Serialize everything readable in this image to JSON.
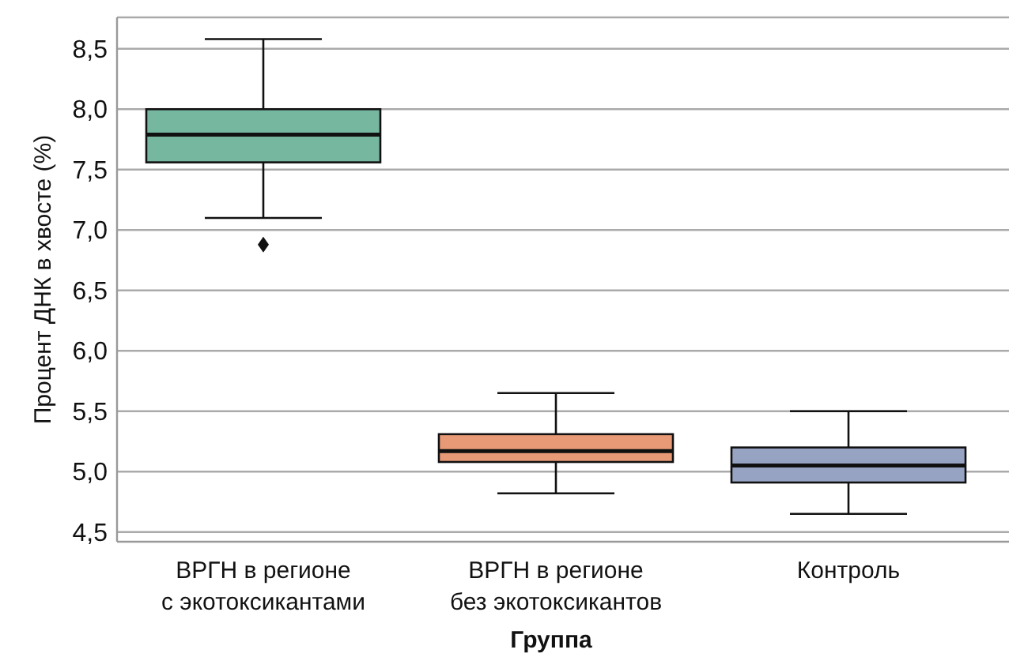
{
  "chart_data": {
    "type": "box",
    "xlabel": "Группа",
    "ylabel": "Процент ДНК в хвосте (%)",
    "categories": [
      "ВРГН в регионе\nс экотоксикантами",
      "ВРГН в регионе\nбез экотоксикантов",
      "Контроль"
    ],
    "colors": [
      "#76b7a0",
      "#e89a76",
      "#96a3c2"
    ],
    "boxes": [
      {
        "low": 7.1,
        "q1": 7.56,
        "median": 7.79,
        "q3": 8.0,
        "high": 8.58,
        "outliers": [
          6.88
        ]
      },
      {
        "low": 4.82,
        "q1": 5.08,
        "median": 5.17,
        "q3": 5.31,
        "high": 5.65
      },
      {
        "low": 4.65,
        "q1": 4.91,
        "median": 5.05,
        "q3": 5.2,
        "high": 5.5
      }
    ],
    "ylim": [
      4.42,
      8.76
    ],
    "yticks": [
      {
        "value": 4.5,
        "label": "4,5"
      },
      {
        "value": 5,
        "label": "5,0"
      },
      {
        "value": 5.5,
        "label": "5,5"
      },
      {
        "value": 6,
        "label": "6,0"
      },
      {
        "value": 6.5,
        "label": "6,5"
      },
      {
        "value": 7,
        "label": "7,0"
      },
      {
        "value": 7.5,
        "label": "7,5"
      },
      {
        "value": 8,
        "label": "8,0"
      },
      {
        "value": 8.5,
        "label": "8,5"
      }
    ],
    "grid": "y"
  }
}
